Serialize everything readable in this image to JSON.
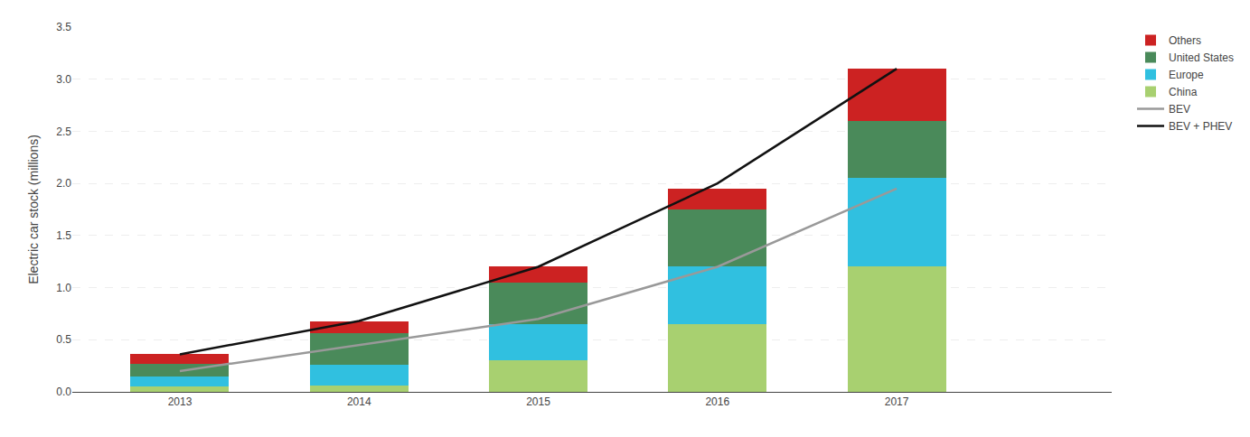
{
  "chart_data": {
    "type": "bar",
    "stacked": true,
    "ylabel": "Electric car stock (millions)",
    "x": [
      2013,
      2014,
      2015,
      2016,
      2017
    ],
    "xlim": [
      2012.4,
      2018.2
    ],
    "xticks": [
      2013,
      2014,
      2015,
      2016,
      2017
    ],
    "ylim": [
      0,
      3.5
    ],
    "yticks": [
      {
        "value": 0,
        "label": "0.0"
      },
      0.5,
      {
        "value": 1,
        "label": "1.0"
      },
      1.5,
      {
        "value": 2,
        "label": "2.0"
      },
      2.5,
      {
        "value": 3,
        "label": "3.0"
      },
      3.5
    ],
    "grid": "y",
    "legend": "right",
    "series": [
      {
        "name": "China",
        "type": "bar",
        "color": "#a8d070",
        "values": [
          0.05,
          0.06,
          0.3,
          0.65,
          1.2
        ]
      },
      {
        "name": "Europe",
        "type": "bar",
        "color": "#30c0e0",
        "values": [
          0.1,
          0.2,
          0.35,
          0.55,
          0.85
        ]
      },
      {
        "name": "United States",
        "type": "bar",
        "color": "#4a8a5a",
        "values": [
          0.12,
          0.3,
          0.4,
          0.55,
          0.55
        ]
      },
      {
        "name": "Others",
        "type": "bar",
        "color": "#cc2222",
        "values": [
          0.09,
          0.12,
          0.15,
          0.2,
          0.5
        ]
      },
      {
        "name": "BEV",
        "type": "line",
        "color": "#999999",
        "values": [
          0.2,
          0.45,
          0.7,
          1.2,
          1.95
        ]
      },
      {
        "name": "BEV + PHEV",
        "type": "line",
        "color": "#111111",
        "values": [
          0.36,
          0.68,
          1.2,
          2.0,
          3.1
        ]
      }
    ]
  }
}
